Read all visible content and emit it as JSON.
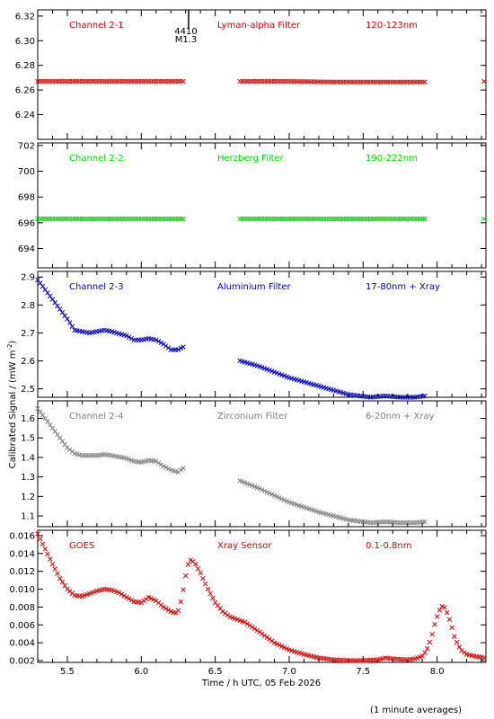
{
  "footnote": "(1 minute averages)",
  "chart_data": {
    "type": "scatter",
    "xlabel": "Time / h UTC, 05 Feb 2026",
    "ylabel": "Calibrated Signal / (mW m",
    "ylabel_sup": "-2",
    "ylabel_close": ")",
    "xlim": [
      5.3,
      8.33
    ],
    "xticks": [
      5.5,
      6.0,
      6.5,
      7.0,
      7.5,
      8.0
    ],
    "xtick_labels": [
      "5.5",
      "6.0",
      "6.5",
      "7.0",
      "7.5",
      "8.0"
    ],
    "marker_annotation": {
      "x": 6.32,
      "lines": [
        "4410",
        "M1.3"
      ]
    },
    "panels": [
      {
        "channel": "Channel 2-1",
        "filter": "Lyman-alpha Filter",
        "band": "120-123nm",
        "color": "#e00000",
        "ylim": [
          6.22,
          6.325
        ],
        "yticks": [
          6.24,
          6.26,
          6.28,
          6.3,
          6.32
        ],
        "ytick_labels": [
          "6.24",
          "6.26",
          "6.28",
          "6.30",
          "6.32"
        ],
        "points": [
          [
            5.3,
            6.267
          ],
          [
            5.5,
            6.267
          ],
          [
            5.75,
            6.267
          ],
          [
            6.0,
            6.267
          ],
          [
            6.28,
            6.267
          ],
          [
            6.67,
            6.267
          ],
          [
            7.0,
            6.267
          ],
          [
            7.3,
            6.2665
          ],
          [
            7.6,
            6.2665
          ],
          [
            7.92,
            6.2665
          ],
          [
            8.33,
            6.267
          ]
        ]
      },
      {
        "channel": "Channel 2-2",
        "filter": "Herzberg Filter",
        "band": "190-222nm",
        "color": "#00dd00",
        "ylim": [
          692.5,
          702.2
        ],
        "yticks": [
          694,
          696,
          698,
          700,
          702
        ],
        "ytick_labels": [
          "694",
          "696",
          "698",
          "700",
          "702"
        ],
        "points": [
          [
            5.3,
            696.3
          ],
          [
            5.6,
            696.3
          ],
          [
            6.0,
            696.3
          ],
          [
            6.28,
            696.3
          ],
          [
            6.67,
            696.3
          ],
          [
            7.0,
            696.3
          ],
          [
            7.5,
            696.3
          ],
          [
            7.92,
            696.3
          ],
          [
            8.33,
            696.3
          ]
        ]
      },
      {
        "channel": "Channel 2-3",
        "filter": "Aluminium Filter",
        "band": "17-80nm + Xray",
        "color": "#0000cc",
        "ylim": [
          2.47,
          2.92
        ],
        "yticks": [
          2.5,
          2.6,
          2.7,
          2.8,
          2.9
        ],
        "ytick_labels": [
          "2.5",
          "2.6",
          "2.7",
          "2.8",
          "2.9"
        ],
        "points": [
          [
            5.3,
            2.89
          ],
          [
            5.4,
            2.82
          ],
          [
            5.5,
            2.75
          ],
          [
            5.55,
            2.71
          ],
          [
            5.6,
            2.705
          ],
          [
            5.65,
            2.7
          ],
          [
            5.7,
            2.705
          ],
          [
            5.75,
            2.71
          ],
          [
            5.8,
            2.705
          ],
          [
            5.9,
            2.69
          ],
          [
            5.95,
            2.675
          ],
          [
            6.0,
            2.675
          ],
          [
            6.05,
            2.68
          ],
          [
            6.1,
            2.675
          ],
          [
            6.15,
            2.66
          ],
          [
            6.2,
            2.64
          ],
          [
            6.25,
            2.64
          ],
          [
            6.28,
            2.65
          ],
          [
            6.67,
            2.6
          ],
          [
            6.8,
            2.58
          ],
          [
            7.0,
            2.54
          ],
          [
            7.2,
            2.51
          ],
          [
            7.4,
            2.48
          ],
          [
            7.55,
            2.47
          ],
          [
            7.65,
            2.475
          ],
          [
            7.75,
            2.47
          ],
          [
            7.85,
            2.47
          ],
          [
            7.92,
            2.475
          ]
        ]
      },
      {
        "channel": "Channel 2-4",
        "filter": "Zirconium Filter",
        "band": "6-20nm + Xray",
        "color": "#808080",
        "ylim": [
          1.045,
          1.69
        ],
        "yticks": [
          1.1,
          1.2,
          1.3,
          1.4,
          1.5,
          1.6
        ],
        "ytick_labels": [
          "1.1",
          "1.2",
          "1.3",
          "1.4",
          "1.5",
          "1.6"
        ],
        "points": [
          [
            5.3,
            1.65
          ],
          [
            5.4,
            1.55
          ],
          [
            5.5,
            1.45
          ],
          [
            5.55,
            1.42
          ],
          [
            5.6,
            1.41
          ],
          [
            5.7,
            1.41
          ],
          [
            5.75,
            1.415
          ],
          [
            5.8,
            1.41
          ],
          [
            5.9,
            1.395
          ],
          [
            5.95,
            1.38
          ],
          [
            6.0,
            1.375
          ],
          [
            6.05,
            1.385
          ],
          [
            6.1,
            1.38
          ],
          [
            6.15,
            1.355
          ],
          [
            6.2,
            1.335
          ],
          [
            6.25,
            1.325
          ],
          [
            6.28,
            1.345
          ],
          [
            6.67,
            1.28
          ],
          [
            6.8,
            1.24
          ],
          [
            7.0,
            1.17
          ],
          [
            7.2,
            1.12
          ],
          [
            7.4,
            1.08
          ],
          [
            7.55,
            1.065
          ],
          [
            7.65,
            1.07
          ],
          [
            7.75,
            1.065
          ],
          [
            7.85,
            1.065
          ],
          [
            7.92,
            1.07
          ]
        ]
      },
      {
        "channel": "GOES",
        "filter": "Xray Sensor",
        "band": "0.1-0.8nm",
        "color": "#e00000",
        "ylim": [
          0.0018,
          0.0166
        ],
        "yticks": [
          0.002,
          0.004,
          0.006,
          0.008,
          0.01,
          0.012,
          0.014,
          0.016
        ],
        "ytick_labels": [
          "0.002",
          "0.004",
          "0.006",
          "0.008",
          "0.010",
          "0.012",
          "0.014",
          "0.016"
        ],
        "points": [
          [
            5.3,
            0.0162
          ],
          [
            5.35,
            0.0145
          ],
          [
            5.4,
            0.0128
          ],
          [
            5.45,
            0.0112
          ],
          [
            5.5,
            0.01
          ],
          [
            5.55,
            0.0093
          ],
          [
            5.6,
            0.0092
          ],
          [
            5.65,
            0.0095
          ],
          [
            5.7,
            0.0098
          ],
          [
            5.75,
            0.01
          ],
          [
            5.8,
            0.0099
          ],
          [
            5.85,
            0.0096
          ],
          [
            5.9,
            0.0091
          ],
          [
            5.95,
            0.0086
          ],
          [
            6.0,
            0.0085
          ],
          [
            6.05,
            0.0091
          ],
          [
            6.1,
            0.0087
          ],
          [
            6.15,
            0.008
          ],
          [
            6.2,
            0.0075
          ],
          [
            6.23,
            0.0073
          ],
          [
            6.25,
            0.0076
          ],
          [
            6.27,
            0.0088
          ],
          [
            6.29,
            0.0105
          ],
          [
            6.31,
            0.0125
          ],
          [
            6.33,
            0.0133
          ],
          [
            6.36,
            0.013
          ],
          [
            6.4,
            0.0118
          ],
          [
            6.45,
            0.01
          ],
          [
            6.5,
            0.0085
          ],
          [
            6.55,
            0.0075
          ],
          [
            6.6,
            0.0069
          ],
          [
            6.7,
            0.0063
          ],
          [
            6.8,
            0.0052
          ],
          [
            6.9,
            0.004
          ],
          [
            7.0,
            0.0032
          ],
          [
            7.1,
            0.0027
          ],
          [
            7.2,
            0.0023
          ],
          [
            7.3,
            0.0021
          ],
          [
            7.4,
            0.002
          ],
          [
            7.5,
            0.002
          ],
          [
            7.6,
            0.0021
          ],
          [
            7.65,
            0.0023
          ],
          [
            7.7,
            0.0022
          ],
          [
            7.8,
            0.0021
          ],
          [
            7.85,
            0.0022
          ],
          [
            7.9,
            0.0025
          ],
          [
            7.93,
            0.0032
          ],
          [
            7.96,
            0.0045
          ],
          [
            7.99,
            0.0065
          ],
          [
            8.02,
            0.0078
          ],
          [
            8.04,
            0.0082
          ],
          [
            8.06,
            0.0077
          ],
          [
            8.09,
            0.0063
          ],
          [
            8.12,
            0.0045
          ],
          [
            8.16,
            0.0032
          ],
          [
            8.2,
            0.0027
          ],
          [
            8.25,
            0.0025
          ],
          [
            8.33,
            0.0023
          ]
        ]
      }
    ]
  }
}
